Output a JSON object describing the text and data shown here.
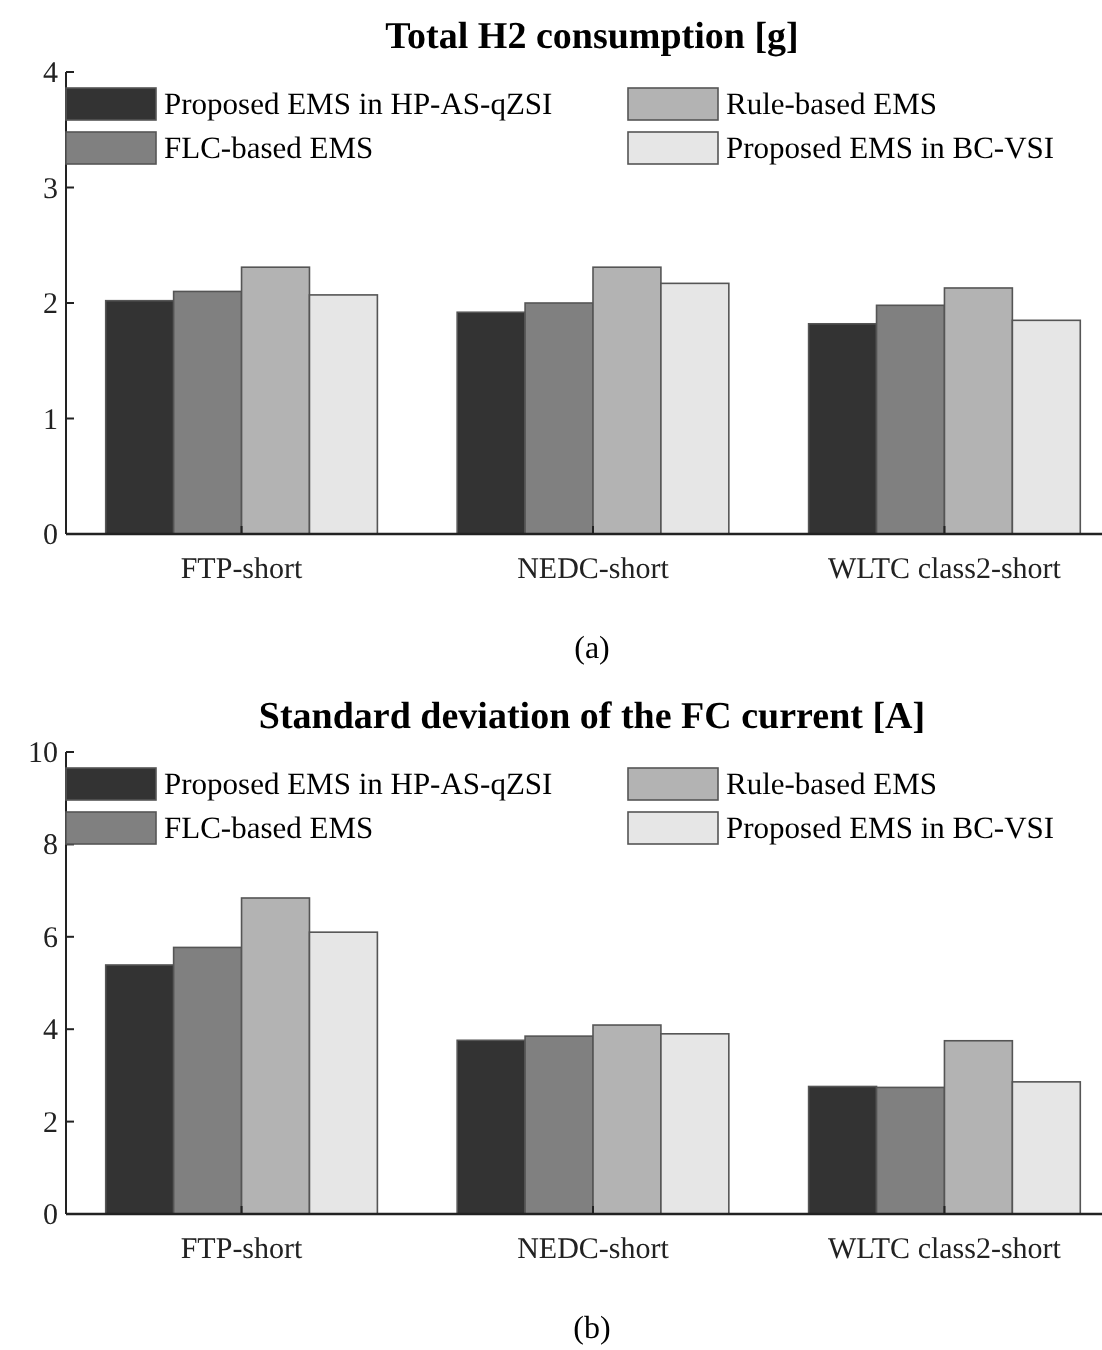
{
  "chart_data": [
    {
      "type": "bar",
      "title": "Total H2 consumption [g]",
      "xlabel": "(a)",
      "categories": [
        "FTP-short",
        "NEDC-short",
        "WLTC class2-short"
      ],
      "series": [
        {
          "name": "Proposed EMS in HP-AS-qZSI",
          "color": "#333333",
          "values": [
            2.02,
            1.92,
            1.82
          ]
        },
        {
          "name": "FLC-based EMS",
          "color": "#808080",
          "values": [
            2.1,
            2.0,
            1.98
          ]
        },
        {
          "name": "Rule-based EMS",
          "color": "#b3b3b3",
          "values": [
            2.31,
            2.31,
            2.13
          ]
        },
        {
          "name": "Proposed EMS in BC-VSI",
          "color": "#e6e6e6",
          "values": [
            2.07,
            2.17,
            1.85
          ]
        }
      ],
      "ylim": [
        0,
        4
      ],
      "yticks": [
        0,
        1,
        2,
        3,
        4
      ],
      "legend": "top",
      "grid": false
    },
    {
      "type": "bar",
      "title": "Standard deviation of the FC current [A]",
      "xlabel": "(b)",
      "categories": [
        "FTP-short",
        "NEDC-short",
        "WLTC class2-short"
      ],
      "series": [
        {
          "name": "Proposed EMS in HP-AS-qZSI",
          "color": "#333333",
          "values": [
            5.39,
            3.76,
            2.76
          ]
        },
        {
          "name": "FLC-based EMS",
          "color": "#808080",
          "values": [
            5.77,
            3.85,
            2.74
          ]
        },
        {
          "name": "Rule-based EMS",
          "color": "#b3b3b3",
          "values": [
            6.84,
            4.09,
            3.75
          ]
        },
        {
          "name": "Proposed EMS in BC-VSI",
          "color": "#e6e6e6",
          "values": [
            6.1,
            3.9,
            2.86
          ]
        }
      ],
      "ylim": [
        0,
        10
      ],
      "yticks": [
        0,
        2,
        4,
        6,
        8,
        10
      ],
      "legend": "top",
      "grid": false
    }
  ]
}
